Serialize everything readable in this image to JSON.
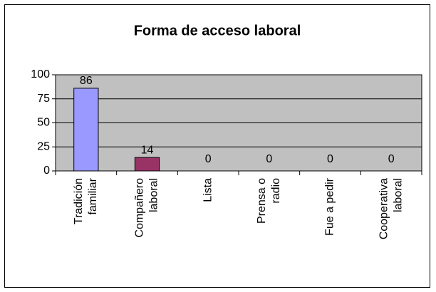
{
  "chart_data": {
    "type": "bar",
    "title": "Forma de acceso laboral",
    "categories": [
      [
        "Tradición",
        "familiar"
      ],
      [
        "Compañero",
        "laboral"
      ],
      [
        "Lista"
      ],
      [
        "Prensa o",
        "radio"
      ],
      [
        "Fue a pedir"
      ],
      [
        "Cooperativa",
        "laboral"
      ]
    ],
    "values": [
      86,
      14,
      0,
      0,
      0,
      0
    ],
    "colors": [
      "#9999ff",
      "#993366",
      "#9999ff",
      "#9999ff",
      "#9999ff",
      "#9999ff"
    ],
    "ylim": [
      0,
      100
    ],
    "yticks": [
      0,
      25,
      50,
      75,
      100
    ],
    "grid": true
  }
}
